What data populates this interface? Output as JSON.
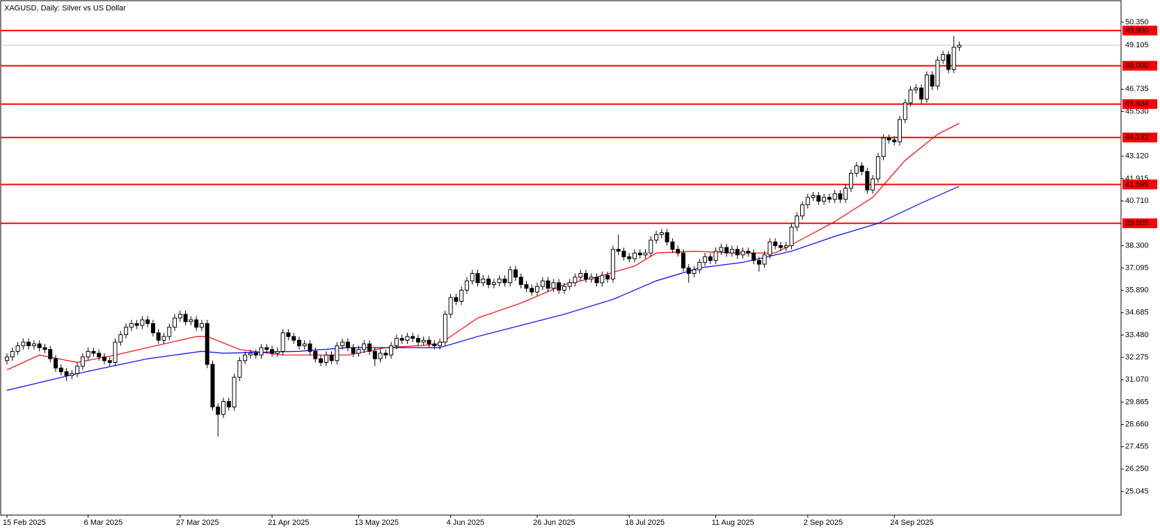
{
  "chart_data": {
    "type": "candlestick",
    "title": "XAGUSD, Daily:  Silver vs US Dollar",
    "open": [
      32.1,
      32.3,
      32.6,
      32.9,
      33.1,
      32.9,
      33.0,
      32.8,
      32.7,
      32.2,
      31.7,
      31.5,
      31.3,
      31.4,
      31.8,
      32.3,
      32.6,
      32.5,
      32.3,
      32.1,
      32.0,
      33.1,
      33.5,
      33.9,
      34.1,
      34.0,
      34.3,
      34.1,
      33.6,
      33.2,
      33.4,
      33.9,
      34.4,
      34.6,
      34.2,
      34.3,
      33.9,
      34.1,
      31.9,
      29.6,
      29.2,
      29.9,
      29.6,
      31.2,
      32.1,
      32.4,
      32.5,
      32.4,
      32.8,
      32.7,
      32.5,
      32.6,
      33.6,
      33.4,
      33.2,
      32.9,
      33.0,
      32.6,
      32.2,
      32.0,
      32.4,
      32.1,
      32.9,
      33.1,
      32.8,
      32.5,
      32.7,
      33.0,
      32.6,
      32.2,
      32.5,
      32.4,
      32.9,
      33.3,
      33.2,
      33.4,
      33.3,
      33.1,
      33.2,
      33.0,
      32.9,
      33.1,
      34.6,
      35.5,
      35.3,
      35.9,
      36.4,
      36.8,
      36.3,
      36.5,
      36.2,
      36.3,
      36.5,
      36.3,
      37.0,
      36.6,
      36.2,
      36.0,
      35.8,
      36.1,
      36.4,
      36.0,
      36.3,
      35.9,
      36.1,
      36.3,
      36.6,
      36.8,
      36.5,
      36.6,
      36.3,
      36.7,
      36.5,
      38.1,
      38.0,
      37.7,
      37.6,
      37.9,
      37.8,
      37.9,
      38.6,
      38.9,
      39.0,
      38.5,
      38.1,
      37.9,
      37.1,
      36.8,
      37.0,
      37.4,
      37.7,
      37.5,
      38.0,
      38.2,
      37.9,
      38.1,
      37.8,
      38.0,
      37.9,
      37.5,
      37.3,
      37.8,
      38.5,
      38.3,
      38.2,
      38.3,
      39.3,
      39.9,
      40.5,
      40.9,
      41.0,
      40.7,
      40.9,
      40.8,
      41.1,
      40.8,
      41.4,
      42.2,
      42.6,
      42.3,
      41.3,
      41.9,
      43.1,
      44.1,
      44.0,
      43.9,
      45.1,
      46.0,
      46.7,
      46.8,
      46.2,
      47.5,
      46.9,
      48.3,
      48.6,
      47.8,
      49.0
    ],
    "high": [
      32.5,
      32.8,
      33.1,
      33.3,
      33.3,
      33.2,
      33.2,
      33.0,
      32.9,
      32.4,
      31.9,
      31.7,
      31.6,
      32.0,
      32.5,
      32.8,
      32.8,
      32.7,
      32.5,
      32.3,
      33.3,
      33.7,
      34.1,
      34.3,
      34.3,
      34.5,
      34.5,
      34.3,
      33.8,
      33.6,
      34.1,
      34.6,
      34.8,
      34.8,
      34.5,
      34.5,
      34.3,
      34.3,
      32.1,
      29.8,
      30.1,
      30.1,
      31.4,
      32.3,
      32.6,
      32.7,
      32.7,
      33.0,
      33.0,
      32.9,
      32.8,
      33.8,
      33.8,
      33.6,
      33.4,
      33.2,
      33.2,
      32.8,
      32.4,
      32.6,
      32.6,
      33.1,
      33.3,
      33.3,
      33.0,
      32.9,
      33.2,
      33.2,
      32.8,
      32.7,
      32.7,
      33.1,
      33.5,
      33.5,
      33.6,
      33.6,
      33.5,
      33.4,
      33.4,
      33.2,
      33.3,
      34.8,
      35.7,
      35.7,
      36.1,
      36.6,
      37.0,
      37.0,
      36.7,
      36.7,
      36.5,
      36.7,
      36.7,
      37.2,
      37.2,
      36.8,
      36.4,
      36.2,
      36.3,
      36.6,
      36.6,
      36.5,
      36.5,
      36.3,
      36.5,
      36.8,
      37.0,
      37.0,
      36.8,
      36.8,
      36.9,
      36.9,
      38.3,
      38.9,
      38.2,
      37.9,
      38.1,
      38.1,
      38.1,
      38.8,
      39.1,
      39.2,
      39.2,
      38.7,
      38.3,
      38.1,
      37.3,
      37.2,
      37.6,
      37.9,
      37.9,
      38.2,
      38.4,
      38.4,
      38.3,
      38.3,
      38.2,
      38.2,
      38.1,
      37.7,
      38.0,
      38.7,
      38.7,
      38.5,
      38.5,
      39.5,
      40.1,
      40.7,
      41.1,
      41.2,
      41.2,
      41.1,
      41.1,
      41.3,
      41.3,
      41.6,
      42.4,
      42.8,
      42.8,
      42.5,
      42.1,
      43.3,
      44.3,
      44.3,
      44.2,
      45.3,
      46.2,
      46.9,
      47.0,
      47.0,
      47.7,
      47.7,
      48.5,
      48.8,
      48.8,
      49.6,
      49.3
    ],
    "low": [
      31.9,
      32.1,
      32.4,
      32.7,
      32.7,
      32.7,
      32.6,
      32.5,
      32.0,
      31.5,
      31.3,
      31.0,
      31.1,
      31.2,
      31.6,
      32.1,
      32.3,
      32.1,
      31.9,
      31.8,
      31.8,
      32.9,
      33.3,
      33.7,
      33.8,
      33.8,
      33.9,
      33.4,
      33.0,
      33.0,
      33.2,
      33.7,
      34.2,
      34.0,
      34.0,
      33.7,
      33.7,
      31.7,
      29.4,
      28.0,
      29.0,
      29.4,
      29.4,
      31.0,
      31.9,
      32.2,
      32.2,
      32.2,
      32.5,
      32.3,
      32.3,
      32.4,
      33.2,
      33.0,
      32.7,
      32.7,
      32.4,
      32.0,
      31.8,
      31.8,
      31.9,
      31.9,
      32.7,
      32.6,
      32.3,
      32.3,
      32.5,
      32.4,
      31.8,
      32.0,
      32.2,
      32.2,
      32.7,
      33.0,
      33.0,
      33.1,
      32.9,
      32.9,
      32.8,
      32.7,
      32.7,
      32.9,
      34.4,
      35.1,
      35.1,
      35.7,
      36.2,
      36.1,
      36.1,
      36.0,
      36.0,
      36.1,
      36.1,
      36.1,
      36.4,
      36.0,
      35.8,
      35.6,
      35.6,
      35.9,
      35.8,
      35.8,
      35.7,
      35.7,
      35.9,
      36.1,
      36.4,
      36.3,
      36.3,
      36.1,
      36.1,
      36.3,
      36.3,
      37.8,
      37.5,
      37.4,
      37.4,
      37.6,
      37.6,
      37.7,
      38.4,
      38.7,
      38.3,
      37.9,
      37.7,
      36.9,
      36.3,
      36.6,
      36.8,
      37.2,
      37.3,
      37.3,
      37.8,
      37.7,
      37.7,
      37.6,
      37.6,
      37.7,
      37.3,
      36.9,
      37.1,
      37.6,
      38.1,
      38.0,
      38.0,
      38.1,
      39.1,
      39.7,
      40.3,
      40.7,
      40.5,
      40.5,
      40.6,
      40.6,
      40.6,
      40.6,
      41.2,
      42.0,
      42.1,
      41.1,
      41.1,
      41.7,
      42.9,
      43.8,
      43.7,
      43.7,
      44.9,
      45.8,
      46.5,
      45.9,
      46.0,
      46.7,
      46.7,
      48.1,
      47.6,
      47.6,
      48.8
    ],
    "close": [
      32.3,
      32.6,
      32.9,
      33.1,
      32.9,
      33.0,
      32.8,
      32.7,
      32.2,
      31.7,
      31.5,
      31.3,
      31.4,
      31.8,
      32.3,
      32.6,
      32.5,
      32.3,
      32.1,
      32.0,
      33.1,
      33.5,
      33.9,
      34.1,
      34.0,
      34.3,
      34.1,
      33.6,
      33.2,
      33.4,
      33.9,
      34.4,
      34.6,
      34.2,
      34.3,
      33.9,
      34.1,
      31.9,
      29.6,
      29.2,
      29.9,
      29.6,
      31.2,
      32.1,
      32.4,
      32.5,
      32.4,
      32.8,
      32.7,
      32.5,
      32.6,
      33.6,
      33.4,
      33.2,
      32.9,
      33.0,
      32.6,
      32.2,
      32.0,
      32.4,
      32.1,
      32.9,
      33.1,
      32.8,
      32.5,
      32.7,
      33.0,
      32.6,
      32.2,
      32.5,
      32.4,
      32.9,
      33.3,
      33.2,
      33.4,
      33.3,
      33.1,
      33.2,
      33.0,
      32.9,
      33.1,
      34.6,
      35.5,
      35.3,
      35.9,
      36.4,
      36.8,
      36.3,
      36.5,
      36.2,
      36.3,
      36.5,
      36.3,
      37.0,
      36.6,
      36.2,
      36.0,
      35.8,
      36.1,
      36.4,
      36.0,
      36.3,
      35.9,
      36.1,
      36.3,
      36.6,
      36.8,
      36.5,
      36.6,
      36.3,
      36.7,
      36.5,
      38.1,
      38.0,
      37.7,
      37.6,
      37.9,
      37.8,
      37.9,
      38.6,
      38.9,
      39.0,
      38.5,
      38.1,
      37.9,
      37.1,
      36.8,
      37.0,
      37.4,
      37.7,
      37.5,
      38.0,
      38.2,
      37.9,
      38.1,
      37.8,
      38.0,
      37.9,
      37.5,
      37.3,
      37.8,
      38.5,
      38.3,
      38.2,
      38.3,
      39.3,
      39.9,
      40.5,
      40.9,
      41.0,
      40.7,
      40.9,
      40.8,
      41.1,
      40.8,
      41.4,
      42.2,
      42.6,
      42.3,
      41.3,
      41.9,
      43.1,
      44.1,
      44.0,
      43.9,
      45.1,
      46.0,
      46.7,
      46.8,
      46.2,
      47.5,
      46.9,
      48.3,
      48.6,
      47.8,
      49.0,
      49.105
    ],
    "up_color": "#ffffff",
    "down_color": "#000000",
    "xlim": [
      -1.16,
      205.9
    ],
    "xticks": [
      {
        "value": 0,
        "label": "15 Feb 2025"
      },
      {
        "value": 15,
        "label": "6 Mar 2025"
      },
      {
        "value": 32,
        "label": "27 Mar 2025"
      },
      {
        "value": 49,
        "label": "21 Apr 2025"
      },
      {
        "value": 65,
        "label": "13 May 2025"
      },
      {
        "value": 82,
        "label": "4 Jun 2025"
      },
      {
        "value": 98,
        "label": "26 Jun 2025"
      },
      {
        "value": 115,
        "label": "18 Jul 2025"
      },
      {
        "value": 131,
        "label": "11 Aug 2025"
      },
      {
        "value": 148,
        "label": "2 Sep 2025"
      },
      {
        "value": 164,
        "label": "24 Sep 2025"
      }
    ],
    "ylim": [
      23.77,
      51.47
    ],
    "yticks": [
      {
        "value": 50.35,
        "label": "50.350"
      },
      {
        "value": 46.735,
        "label": "46.735"
      },
      {
        "value": 45.53,
        "label": "45.530"
      },
      {
        "value": 43.12,
        "label": "43.120"
      },
      {
        "value": 41.915,
        "label": "41.915"
      },
      {
        "value": 40.71,
        "label": "40.710"
      },
      {
        "value": 38.3,
        "label": "38.300"
      },
      {
        "value": 37.095,
        "label": "37.095"
      },
      {
        "value": 35.89,
        "label": "35.890"
      },
      {
        "value": 34.685,
        "label": "34.685"
      },
      {
        "value": 33.48,
        "label": "33.480"
      },
      {
        "value": 32.275,
        "label": "32.275"
      },
      {
        "value": 31.07,
        "label": "31.070"
      },
      {
        "value": 29.865,
        "label": "29.865"
      },
      {
        "value": 28.66,
        "label": "28.660"
      },
      {
        "value": 27.455,
        "label": "27.455"
      },
      {
        "value": 26.25,
        "label": "26.250"
      },
      {
        "value": 25.045,
        "label": "25.045"
      }
    ],
    "level_color": "#ff0000",
    "levels": [
      {
        "value": 49.9,
        "label": "49.900"
      },
      {
        "value": 48.0,
        "label": "48.000"
      },
      {
        "value": 45.934,
        "label": "45.934"
      },
      {
        "value": 44.132,
        "label": "44.132"
      },
      {
        "value": 41.599,
        "label": "41.599"
      },
      {
        "value": 39.505,
        "label": "39.505"
      }
    ],
    "last_price": {
      "value": 49.105,
      "label": "49.105"
    },
    "moving_averages": [
      {
        "color": "#ff0000",
        "x": [
          0,
          6,
          13,
          20,
          26,
          35,
          37,
          43,
          51,
          58,
          63,
          70,
          76,
          80,
          87,
          95,
          103,
          109,
          116,
          120,
          127,
          134,
          142,
          146,
          153,
          160,
          166,
          172,
          176
        ],
        "values": [
          31.6,
          32.4,
          32.0,
          32.4,
          32.8,
          33.4,
          33.4,
          32.7,
          32.4,
          32.4,
          32.4,
          32.8,
          32.9,
          33.0,
          34.4,
          35.2,
          36.2,
          36.6,
          37.2,
          37.9,
          38.0,
          37.9,
          37.9,
          38.5,
          39.6,
          40.9,
          42.9,
          44.3,
          44.9
        ]
      },
      {
        "color": "#0000ff",
        "x": [
          0,
          13,
          26,
          36,
          40,
          54,
          63,
          70,
          80,
          87,
          95,
          103,
          112,
          120,
          128,
          136,
          145,
          153,
          161,
          169,
          176
        ],
        "values": [
          30.5,
          31.4,
          32.2,
          32.6,
          32.5,
          32.6,
          32.8,
          32.8,
          32.8,
          33.4,
          34.0,
          34.6,
          35.4,
          36.4,
          37.1,
          37.4,
          38.0,
          38.8,
          39.5,
          40.6,
          41.5
        ]
      }
    ]
  }
}
